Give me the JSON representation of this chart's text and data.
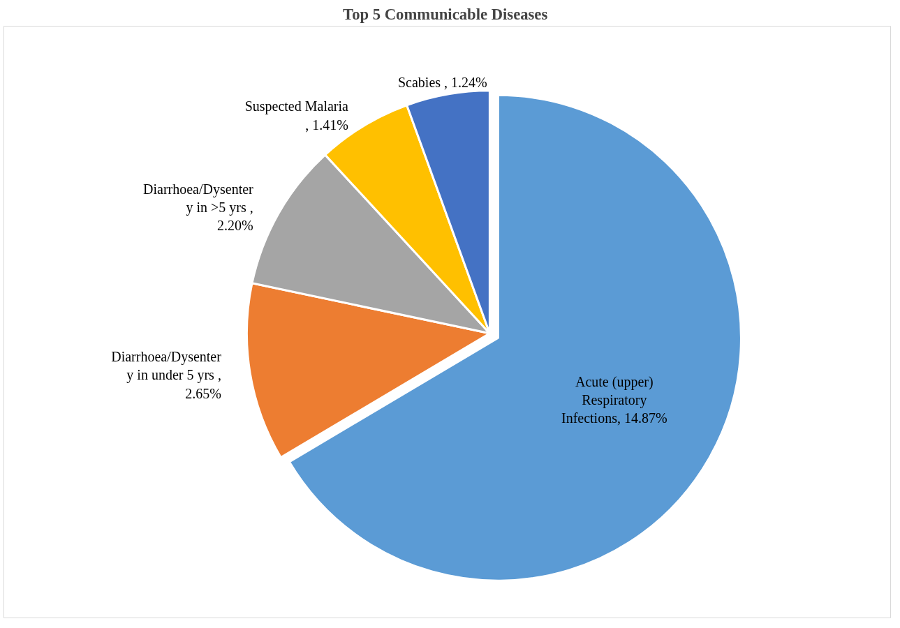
{
  "chart_data": {
    "type": "pie",
    "title": "Top 5 Communicable  Diseases",
    "categories": [
      "Acute (upper) Respiratory Infections",
      "Diarrhoea/Dysentery in under 5 yrs",
      "Diarrhoea/Dysentery in >5 yrs",
      "Suspected Malaria",
      "Scabies"
    ],
    "values": [
      14.87,
      2.65,
      2.2,
      1.41,
      1.24
    ],
    "value_labels": [
      ", 14.87%",
      " , 2.65%",
      " , 2.20%",
      " , 1.41%",
      " , 1.24%"
    ],
    "colors": [
      "#5b9bd5",
      "#ed7d31",
      "#a5a5a5",
      "#ffc000",
      "#4472c4"
    ]
  }
}
